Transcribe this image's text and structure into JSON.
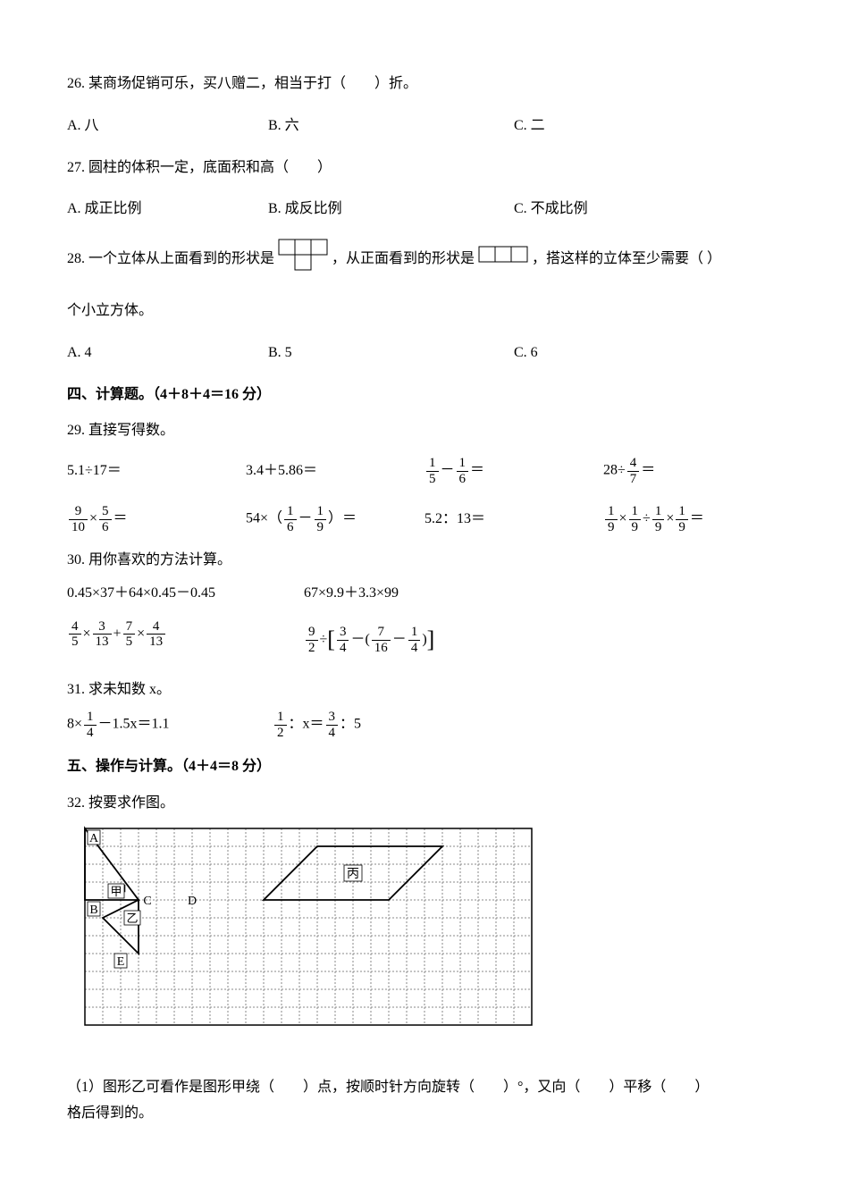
{
  "q26": {
    "text": "26. 某商场促销可乐，买八赠二，相当于打（　　）折。",
    "a": "A. 八",
    "b": "B. 六",
    "c": "C. 二"
  },
  "q27": {
    "text": "27. 圆柱的体积一定，底面积和高（　　）",
    "a": "A. 成正比例",
    "b": "B. 成反比例",
    "c": "C. 不成比例"
  },
  "q28": {
    "part1": "28. 一个立体从上面看到的形状是",
    "part2": "，从正面看到的形状是",
    "part3": "，搭这样的立体至少需要（  ）",
    "part4": "个小立方体。",
    "a": "A. 4",
    "b": "B. 5",
    "c": "C. 6"
  },
  "section4": "四、计算题。（4＋8＋4＝16 分）",
  "q29": {
    "text": "29. 直接写得数。",
    "r1c1": "5.1÷17＝",
    "r1c2": "3.4＋5.86＝",
    "r2c3": "5.2：13＝"
  },
  "q30": {
    "text": "30. 用你喜欢的方法计算。",
    "r1c1": "0.45×37＋64×0.45－0.45",
    "r1c2": "67×9.9＋3.3×99"
  },
  "q31": {
    "text": "31. 求未知数 x。"
  },
  "section5": "五、操作与计算。（4＋4＝8 分）",
  "q32": {
    "text": "32. 按要求作图。",
    "sub1": "（1）图形乙可看作是图形甲绕（　　）点，按顺时针方向旋转（　　）°，又向（　　）平移（　　）",
    "sub1b": "格后得到的。",
    "labels": {
      "A": "A",
      "B": "B",
      "C": "C",
      "D": "D",
      "E": "E",
      "jia": "甲",
      "yi": "乙",
      "bing": "丙"
    },
    "grid": {
      "cols": 25,
      "rows": 11,
      "cell": 20
    }
  },
  "colors": {
    "text": "#000000",
    "bg": "#ffffff",
    "grid_dash": "#808080"
  }
}
